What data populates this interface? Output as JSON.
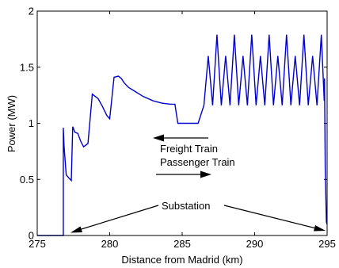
{
  "chart_data": {
    "type": "line",
    "title": "",
    "xlabel": "Distance from Madrid (km)",
    "ylabel": "Power (MW)",
    "xlim": [
      275,
      295
    ],
    "ylim": [
      0,
      2
    ],
    "xticks": [
      "275",
      "280",
      "285",
      "290",
      "295"
    ],
    "yticks": [
      "0",
      "0.5",
      "1",
      "1.5",
      "2"
    ],
    "grid": false,
    "line_color": "#0000cc",
    "series": [
      {
        "points": [
          [
            275,
            0.0
          ],
          [
            276.8,
            0.0
          ],
          [
            276.8,
            0.96
          ],
          [
            276.85,
            0.8
          ],
          [
            277.0,
            0.54
          ],
          [
            277.2,
            0.51
          ],
          [
            277.35,
            0.49
          ],
          [
            277.45,
            0.97
          ],
          [
            277.6,
            0.92
          ],
          [
            277.8,
            0.91
          ],
          [
            278.0,
            0.84
          ],
          [
            278.2,
            0.79
          ],
          [
            278.5,
            0.82
          ],
          [
            278.8,
            1.26
          ],
          [
            279.0,
            1.24
          ],
          [
            279.2,
            1.22
          ],
          [
            279.5,
            1.15
          ],
          [
            279.8,
            1.07
          ],
          [
            280.0,
            1.04
          ],
          [
            280.3,
            1.41
          ],
          [
            280.6,
            1.42
          ],
          [
            280.8,
            1.4
          ],
          [
            281.0,
            1.36
          ],
          [
            281.3,
            1.32
          ],
          [
            281.8,
            1.28
          ],
          [
            282.3,
            1.24
          ],
          [
            283.0,
            1.2
          ],
          [
            283.6,
            1.18
          ],
          [
            284.2,
            1.17
          ],
          [
            284.5,
            1.17
          ],
          [
            284.7,
            1.0
          ],
          [
            285.0,
            1.0
          ],
          [
            286.1,
            1.0
          ],
          [
            286.5,
            1.16
          ],
          [
            286.8,
            1.6
          ],
          [
            287.1,
            1.16
          ],
          [
            287.4,
            1.79
          ],
          [
            287.7,
            1.16
          ],
          [
            288.0,
            1.6
          ],
          [
            288.3,
            1.16
          ],
          [
            288.6,
            1.79
          ],
          [
            288.9,
            1.16
          ],
          [
            289.2,
            1.6
          ],
          [
            289.5,
            1.16
          ],
          [
            289.8,
            1.79
          ],
          [
            290.1,
            1.16
          ],
          [
            290.4,
            1.6
          ],
          [
            290.7,
            1.16
          ],
          [
            291.0,
            1.79
          ],
          [
            291.3,
            1.16
          ],
          [
            291.6,
            1.6
          ],
          [
            291.9,
            1.16
          ],
          [
            292.2,
            1.79
          ],
          [
            292.5,
            1.16
          ],
          [
            292.8,
            1.6
          ],
          [
            293.1,
            1.16
          ],
          [
            293.4,
            1.79
          ],
          [
            293.7,
            1.16
          ],
          [
            294.0,
            1.6
          ],
          [
            294.3,
            1.16
          ],
          [
            294.6,
            1.79
          ],
          [
            294.8,
            1.2
          ],
          [
            294.82,
            1.4
          ],
          [
            294.87,
            0.6
          ],
          [
            294.95,
            0.12
          ],
          [
            295,
            0.1
          ]
        ]
      }
    ],
    "annotations": {
      "freight": "Freight Train",
      "passenger": "Passenger Train",
      "substation": "Substation"
    }
  }
}
